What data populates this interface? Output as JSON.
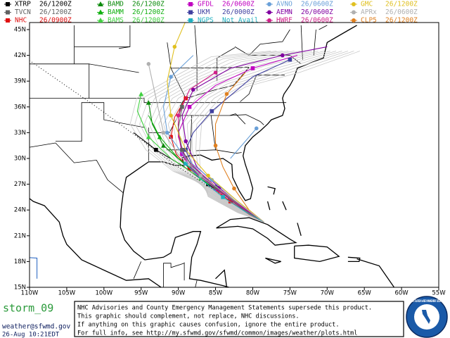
{
  "legend": [
    {
      "name": "XTRP",
      "time": "26/1200Z",
      "color": "#000000"
    },
    {
      "name": "BAMD",
      "time": "26/1200Z",
      "color": "#0a8a0a"
    },
    {
      "name": "GFDL",
      "time": "26/0600Z",
      "color": "#c000c0"
    },
    {
      "name": "AVNO",
      "time": "26/0600Z",
      "color": "#6aa0d8"
    },
    {
      "name": "GMC",
      "time": "26/1200Z",
      "color": "#e0c020"
    },
    {
      "name": "TVCN",
      "time": "26/1200Z",
      "color": "#606060"
    },
    {
      "name": "BAMM",
      "time": "26/1200Z",
      "color": "#10b010"
    },
    {
      "name": "UKM",
      "time": "26/0000Z",
      "color": "#4040a0"
    },
    {
      "name": "AEMN",
      "time": "26/0600Z",
      "color": "#8000a0"
    },
    {
      "name": "APRx",
      "time": "26/0600Z",
      "color": "#b0b0b0"
    },
    {
      "name": "NHC",
      "time": "26/0900Z",
      "color": "#e01010"
    },
    {
      "name": "BAMS",
      "time": "26/1200Z",
      "color": "#40d040"
    },
    {
      "name": "NGPS",
      "time": "Not Avail",
      "color": "#20b0c0"
    },
    {
      "name": "HWRF",
      "time": "26/0600Z",
      "color": "#d0208a"
    },
    {
      "name": "CLP5",
      "time": "26/1200Z",
      "color": "#e08020"
    }
  ],
  "axes": {
    "lon_labels": [
      "110W",
      "105W",
      "100W",
      "95W",
      "90W",
      "85W",
      "80W",
      "75W",
      "70W",
      "65W",
      "60W",
      "55W"
    ],
    "lat_labels": [
      "15N",
      "18N",
      "21N",
      "24N",
      "27N",
      "30N",
      "33N",
      "36N",
      "39N",
      "42N",
      "45N"
    ]
  },
  "footer": {
    "storm": "storm_09",
    "email": "weather@sfwmd.gov",
    "timestamp": "26-Aug 10:21EDT",
    "notice": [
      "NHC Advisories and County Emergency Management Statements supersede this product.",
      "This graphic should complement, not replace, NHC discussions.",
      "If anything on this graphic causes confusion, ignore the entire product.",
      "For full info, see  http://my.sfwmd.gov/sfwmd/common/images/weather/plots.html"
    ],
    "logo": "SOUTH FLORIDA WATER MANAGEMENT DISTRICT"
  }
}
